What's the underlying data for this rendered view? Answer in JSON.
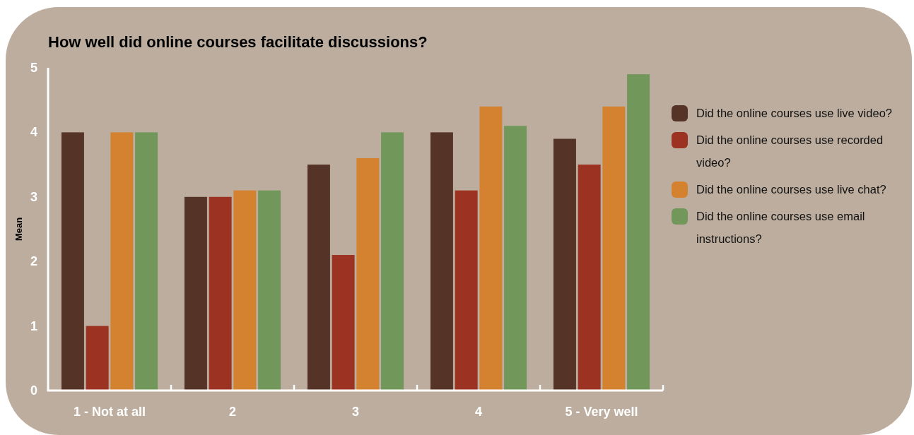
{
  "chart_data": {
    "type": "bar",
    "title": "How well did online courses facilitate discussions?",
    "ylabel": "Mean",
    "categories": [
      "1 - Not at all",
      "2",
      "3",
      "4",
      "5 - Very well"
    ],
    "series": [
      {
        "name": "Did the online courses use live video?",
        "color": "#553326",
        "values": [
          4.0,
          3.0,
          3.5,
          4.0,
          3.9
        ]
      },
      {
        "name": "Did the online courses use recorded video?",
        "color": "#9b3222",
        "values": [
          1.0,
          3.0,
          2.1,
          3.1,
          3.5
        ]
      },
      {
        "name": "Did the online courses use live chat?",
        "color": "#d58230",
        "values": [
          4.0,
          3.1,
          3.6,
          4.4,
          4.4
        ]
      },
      {
        "name": "Did the online courses use email instructions?",
        "color": "#72975a",
        "values": [
          4.0,
          3.1,
          4.0,
          4.1,
          4.9
        ]
      }
    ],
    "ylim": [
      0,
      5
    ],
    "yticks": [
      0,
      1,
      2,
      3,
      4,
      5
    ],
    "legend": "right"
  }
}
